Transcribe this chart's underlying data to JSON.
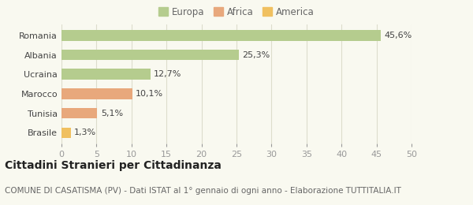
{
  "categories": [
    "Romania",
    "Albania",
    "Ucraina",
    "Marocco",
    "Tunisia",
    "Brasile"
  ],
  "values": [
    45.6,
    25.3,
    12.7,
    10.1,
    5.1,
    1.3
  ],
  "labels": [
    "45,6%",
    "25,3%",
    "12,7%",
    "10,1%",
    "5,1%",
    "1,3%"
  ],
  "colors": [
    "#b5cc8e",
    "#b5cc8e",
    "#b5cc8e",
    "#e8a87c",
    "#e8a87c",
    "#f0c060"
  ],
  "legend": [
    {
      "label": "Europa",
      "color": "#b5cc8e"
    },
    {
      "label": "Africa",
      "color": "#e8a87c"
    },
    {
      "label": "America",
      "color": "#f0c060"
    }
  ],
  "xlim": [
    0,
    50
  ],
  "xticks": [
    0,
    5,
    10,
    15,
    20,
    25,
    30,
    35,
    40,
    45,
    50
  ],
  "title": "Cittadini Stranieri per Cittadinanza",
  "subtitle": "COMUNE DI CASATISMA (PV) - Dati ISTAT al 1° gennaio di ogni anno - Elaborazione TUTTITALIA.IT",
  "background_color": "#f9f9f0",
  "grid_color": "#ddddcc",
  "title_fontsize": 10,
  "subtitle_fontsize": 7.5,
  "label_fontsize": 8,
  "tick_fontsize": 8
}
